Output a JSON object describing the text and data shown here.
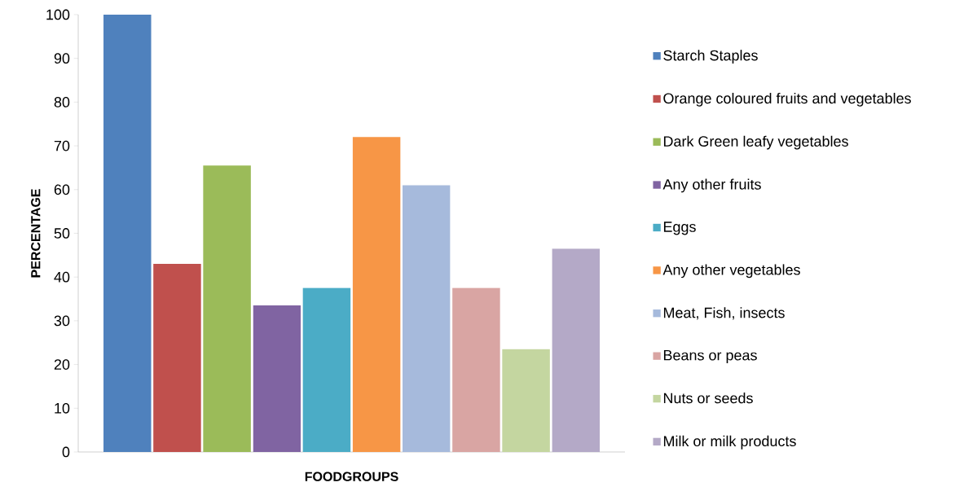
{
  "chart_data": {
    "type": "bar",
    "xlabel": "FOODGROUPS",
    "ylabel": "PERCENTAGE",
    "categories": [
      null
    ],
    "series": [
      {
        "name": "Starch Staples",
        "color": "#4f81bd",
        "values": [
          100
        ]
      },
      {
        "name": "Orange coloured fruits and vegetables",
        "color": "#c0504d",
        "values": [
          43
        ]
      },
      {
        "name": "Dark Green leafy vegetables",
        "color": "#9bbb59",
        "values": [
          65.5
        ]
      },
      {
        "name": "Any other fruits",
        "color": "#8064a2",
        "values": [
          33.5
        ]
      },
      {
        "name": "Eggs",
        "color": "#4bacc6",
        "values": [
          37.5
        ]
      },
      {
        "name": "Any other vegetables",
        "color": "#f79646",
        "values": [
          72
        ]
      },
      {
        "name": "Meat, Fish, insects",
        "color": "#a6badc",
        "values": [
          61
        ]
      },
      {
        "name": "Beans or peas",
        "color": "#d9a5a3",
        "values": [
          37.5
        ]
      },
      {
        "name": "Nuts or seeds",
        "color": "#c4d6a0",
        "values": [
          23.5
        ]
      },
      {
        "name": "Milk or milk products",
        "color": "#b4a9c7",
        "values": [
          46.5
        ]
      }
    ],
    "ylim": [
      0,
      100
    ],
    "yticks": [
      0,
      10,
      20,
      30,
      40,
      50,
      60,
      70,
      80,
      90,
      100
    ],
    "legend": "right",
    "grid": false
  }
}
